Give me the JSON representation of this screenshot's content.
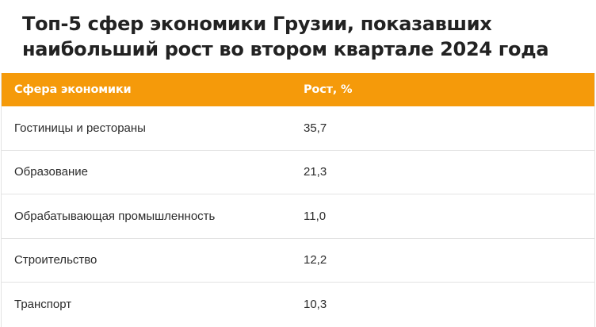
{
  "title": "Топ-5 сфер экономики Грузии, показавших наибольший рост во втором квартале 2024 года",
  "table": {
    "headers": [
      "Сфера экономики",
      "Рост, %"
    ],
    "rows": [
      [
        "Гостиницы и рестораны",
        "35,7"
      ],
      [
        "Образование",
        "21,3"
      ],
      [
        "Обрабатывающая промышленность",
        "11,0"
      ],
      [
        "Строительство",
        "12,2"
      ],
      [
        "Транспорт",
        "10,3"
      ]
    ]
  },
  "colors": {
    "header_background": "#f59a0a",
    "header_text": "#ffffff",
    "border": "#e3e3e3"
  }
}
